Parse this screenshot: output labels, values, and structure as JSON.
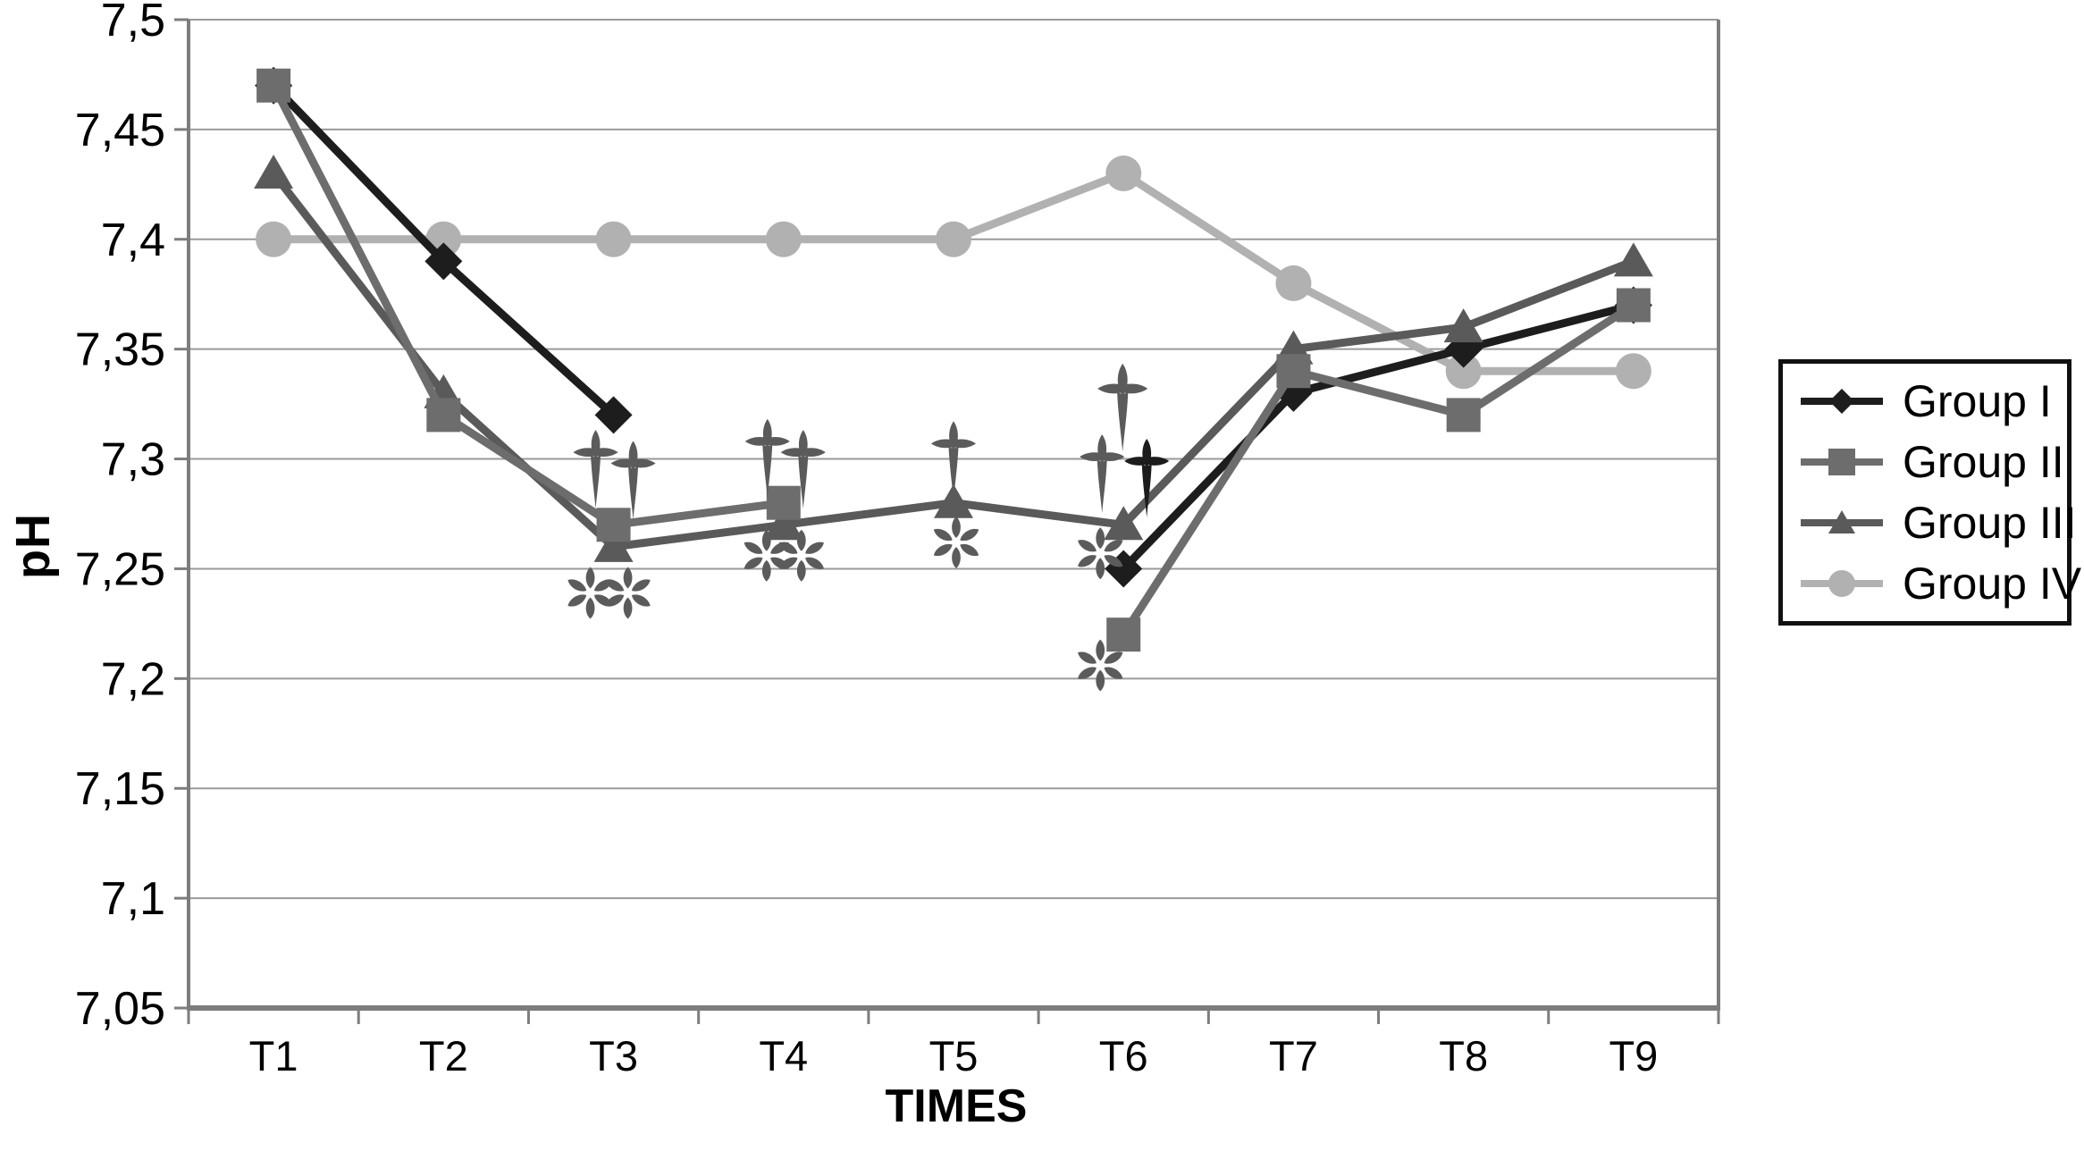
{
  "figure_background": "#ffffff",
  "colors": {
    "gridline": "#9a9a9a",
    "axis": "#7d7d7d",
    "tick": "#7d7d7d",
    "text": "#000000",
    "annotation_gray": "#5b5b5b",
    "annotation_black": "#1c1c1c",
    "legend_border": "#111111"
  },
  "chart_data": {
    "type": "line",
    "title": "",
    "xlabel": "TIMES",
    "ylabel": "pH",
    "categories": [
      "T1",
      "T2",
      "T3",
      "T4",
      "T5",
      "T6",
      "T7",
      "T8",
      "T9"
    ],
    "ylim": [
      7.05,
      7.5
    ],
    "grid": true,
    "legend_position": "right",
    "y_ticks": [
      {
        "label": "7,5",
        "value": 7.5
      },
      {
        "label": "7,45",
        "value": 7.45
      },
      {
        "label": "7,4",
        "value": 7.4
      },
      {
        "label": "7,35",
        "value": 7.35
      },
      {
        "label": "7,3",
        "value": 7.3
      },
      {
        "label": "7,25",
        "value": 7.25
      },
      {
        "label": "7,2",
        "value": 7.2
      },
      {
        "label": "7,15",
        "value": 7.15
      },
      {
        "label": "7,1",
        "value": 7.1
      },
      {
        "label": "7,05",
        "value": 7.05
      }
    ],
    "series": [
      {
        "name": "Group I",
        "marker": "diamond",
        "color": "#1d1d1d",
        "values": [
          7.47,
          7.39,
          7.32,
          null,
          null,
          7.25,
          7.33,
          7.35,
          7.37
        ]
      },
      {
        "name": "Group II",
        "marker": "square",
        "color": "#6d6d6d",
        "values": [
          7.47,
          7.32,
          7.27,
          7.28,
          null,
          7.22,
          7.34,
          7.32,
          7.37
        ]
      },
      {
        "name": "Group III",
        "marker": "triangle",
        "color": "#5a5a5a",
        "values": [
          7.43,
          7.33,
          7.26,
          7.27,
          7.28,
          7.27,
          7.35,
          7.36,
          7.39
        ]
      },
      {
        "name": "Group IV",
        "marker": "circle",
        "color": "#b1b1b1",
        "values": [
          7.4,
          7.4,
          7.4,
          7.4,
          7.4,
          7.43,
          7.38,
          7.34,
          7.34
        ]
      }
    ],
    "draw_order": [
      3,
      0,
      2,
      1
    ],
    "annotations": [
      {
        "category": "T3",
        "glyph": "dagger",
        "color": "#5b5b5b",
        "ph": 7.303,
        "dx": -20,
        "size": 1
      },
      {
        "category": "T3",
        "glyph": "dagger",
        "color": "#5b5b5b",
        "ph": 7.298,
        "dx": 22,
        "size": 1
      },
      {
        "category": "T3",
        "glyph": "asterisk",
        "color": "#5b5b5b",
        "ph": 7.239,
        "dx": -26,
        "size": 1
      },
      {
        "category": "T3",
        "glyph": "asterisk",
        "color": "#5b5b5b",
        "ph": 7.239,
        "dx": 16,
        "size": 1
      },
      {
        "category": "T4",
        "glyph": "dagger",
        "color": "#5b5b5b",
        "ph": 7.308,
        "dx": -18,
        "size": 1
      },
      {
        "category": "T4",
        "glyph": "dagger",
        "color": "#5b5b5b",
        "ph": 7.303,
        "dx": 22,
        "size": 1
      },
      {
        "category": "T4",
        "glyph": "asterisk",
        "color": "#5b5b5b",
        "ph": 7.256,
        "dx": -19,
        "size": 1
      },
      {
        "category": "T4",
        "glyph": "asterisk",
        "color": "#5b5b5b",
        "ph": 7.256,
        "dx": 20,
        "size": 1
      },
      {
        "category": "T5",
        "glyph": "dagger",
        "color": "#5b5b5b",
        "ph": 7.307,
        "dx": 0,
        "size": 1
      },
      {
        "category": "T5",
        "glyph": "asterisk",
        "color": "#5b5b5b",
        "ph": 7.262,
        "dx": 3,
        "size": 1
      },
      {
        "category": "T6",
        "glyph": "dagger",
        "color": "#5b5b5b",
        "ph": 7.332,
        "dx": -1,
        "size": 1.12
      },
      {
        "category": "T6",
        "glyph": "dagger",
        "color": "#5b5b5b",
        "ph": 7.301,
        "dx": -24,
        "size": 1
      },
      {
        "category": "T6",
        "glyph": "dagger",
        "color": "#1c1c1c",
        "ph": 7.299,
        "dx": 26,
        "size": 1
      },
      {
        "category": "T6",
        "glyph": "asterisk",
        "color": "#5b5b5b",
        "ph": 7.257,
        "dx": -26,
        "size": 1
      },
      {
        "category": "T6",
        "glyph": "asterisk",
        "color": "#5b5b5b",
        "ph": 7.206,
        "dx": -26,
        "size": 1
      }
    ]
  }
}
